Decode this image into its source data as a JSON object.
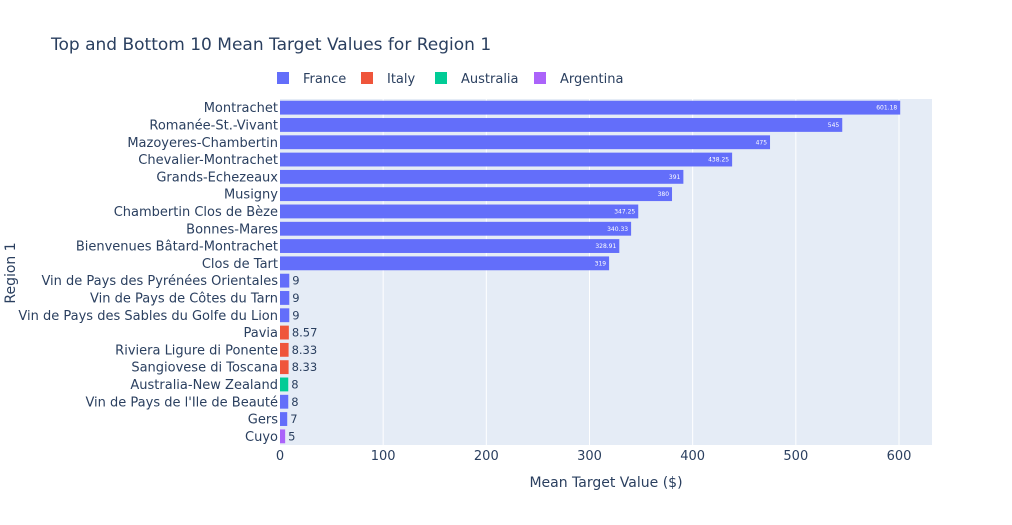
{
  "chart_data": {
    "type": "bar",
    "orientation": "horizontal",
    "title": "Top and Bottom 10 Mean Target Values for Region 1",
    "xlabel": "Mean Target Value ($)",
    "ylabel": "Region 1",
    "xlim": [
      0,
      632
    ],
    "xticks": [
      0,
      100,
      200,
      300,
      400,
      500,
      600
    ],
    "grid": true,
    "legend_position": "top",
    "legend": [
      {
        "name": "France",
        "color": "#636efa"
      },
      {
        "name": "Italy",
        "color": "#ef553b"
      },
      {
        "name": "Australia",
        "color": "#00cc96"
      },
      {
        "name": "Argentina",
        "color": "#ab63fa"
      }
    ],
    "bars": [
      {
        "category": "Montrachet",
        "value": 601.18,
        "label": "601.18",
        "series": "France"
      },
      {
        "category": "Romanée-St.-Vivant",
        "value": 545,
        "label": "545",
        "series": "France"
      },
      {
        "category": "Mazoyeres-Chambertin",
        "value": 475,
        "label": "475",
        "series": "France"
      },
      {
        "category": "Chevalier-Montrachet",
        "value": 438.25,
        "label": "438.25",
        "series": "France"
      },
      {
        "category": "Grands-Echezeaux",
        "value": 391,
        "label": "391",
        "series": "France"
      },
      {
        "category": "Musigny",
        "value": 380,
        "label": "380",
        "series": "France"
      },
      {
        "category": "Chambertin Clos de Bèze",
        "value": 347.25,
        "label": "347.25",
        "series": "France"
      },
      {
        "category": "Bonnes-Mares",
        "value": 340.33,
        "label": "340.33",
        "series": "France"
      },
      {
        "category": "Bienvenues Bâtard-Montrachet",
        "value": 328.91,
        "label": "328.91",
        "series": "France"
      },
      {
        "category": "Clos de Tart",
        "value": 319,
        "label": "319",
        "series": "France"
      },
      {
        "category": "Vin de Pays des Pyrénées Orientales",
        "value": 9,
        "label": "9",
        "series": "France"
      },
      {
        "category": "Vin de Pays de Côtes du Tarn",
        "value": 9,
        "label": "9",
        "series": "France"
      },
      {
        "category": "Vin de Pays des Sables du Golfe du Lion",
        "value": 9,
        "label": "9",
        "series": "France"
      },
      {
        "category": "Pavia",
        "value": 8.57,
        "label": "8.57",
        "series": "Italy"
      },
      {
        "category": "Riviera Ligure di Ponente",
        "value": 8.33,
        "label": "8.33",
        "series": "Italy"
      },
      {
        "category": "Sangiovese di Toscana",
        "value": 8.33,
        "label": "8.33",
        "series": "Italy"
      },
      {
        "category": "Australia-New Zealand",
        "value": 8,
        "label": "8",
        "series": "Australia"
      },
      {
        "category": "Vin de Pays de l'Ile de Beauté",
        "value": 8,
        "label": "8",
        "series": "France"
      },
      {
        "category": "Gers",
        "value": 7,
        "label": "7",
        "series": "France"
      },
      {
        "category": "Cuyo",
        "value": 5,
        "label": "5",
        "series": "Argentina"
      }
    ]
  }
}
